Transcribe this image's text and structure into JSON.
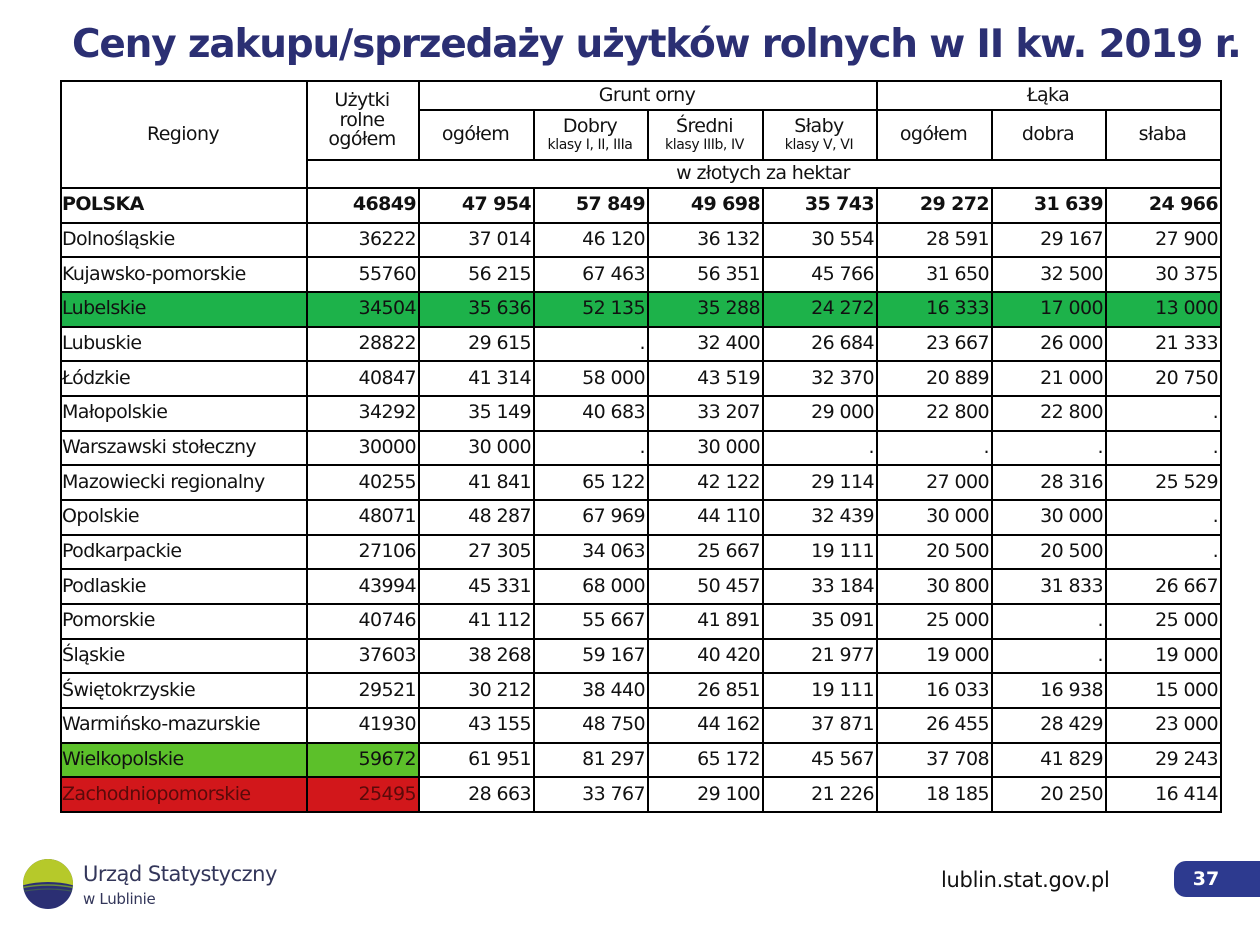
{
  "title": "Ceny zakupu/sprzedaży użytków rolnych w II kw. 2019 r.",
  "table": {
    "headers": {
      "regiony": "Regiony",
      "uzytki": [
        "Użytki",
        "rolne",
        "ogółem"
      ],
      "grunt_orny": "Grunt orny",
      "laka": "Łąka",
      "ogolem": "ogółem",
      "dobry": "Dobry",
      "dobry_sub": "klasy I, II, IIIa",
      "sredni": "Średni",
      "sredni_sub": "klasy IIIb, IV",
      "slaby": "Słaby",
      "slaby_sub": "klasy V, VI",
      "laka_ogolem": "ogółem",
      "laka_dobra": "dobra",
      "laka_slaba": "słaba",
      "unit": "w złotych za hektar"
    },
    "rows": [
      {
        "region": "POLSKA",
        "values": [
          "46849",
          "47 954",
          "57 849",
          "49 698",
          "35 743",
          "29 272",
          "31 639",
          "24 966"
        ]
      },
      {
        "region": "Dolnośląskie",
        "values": [
          "36222",
          "37 014",
          "46 120",
          "36 132",
          "30 554",
          "28 591",
          "29 167",
          "27 900"
        ]
      },
      {
        "region": "Kujawsko-pomorskie",
        "values": [
          "55760",
          "56 215",
          "67 463",
          "56 351",
          "45 766",
          "31 650",
          "32 500",
          "30 375"
        ]
      },
      {
        "region": "Lubelskie",
        "values": [
          "34504",
          "35 636",
          "52 135",
          "35 288",
          "24 272",
          "16 333",
          "17 000",
          "13 000"
        ]
      },
      {
        "region": "Lubuskie",
        "values": [
          "28822",
          "29 615",
          ".",
          "32 400",
          "26 684",
          "23 667",
          "26 000",
          "21 333"
        ]
      },
      {
        "region": "Łódzkie",
        "values": [
          "40847",
          "41 314",
          "58 000",
          "43 519",
          "32 370",
          "20 889",
          "21 000",
          "20 750"
        ]
      },
      {
        "region": "Małopolskie",
        "values": [
          "34292",
          "35 149",
          "40 683",
          "33 207",
          "29 000",
          "22 800",
          "22 800",
          "."
        ]
      },
      {
        "region": "Warszawski stołeczny",
        "values": [
          "30000",
          "30 000",
          ".",
          "30 000",
          ".",
          ".",
          ".",
          "."
        ]
      },
      {
        "region": "Mazowiecki regionalny",
        "values": [
          "40255",
          "41 841",
          "65 122",
          "42 122",
          "29 114",
          "27 000",
          "28 316",
          "25 529"
        ]
      },
      {
        "region": "Opolskie",
        "values": [
          "48071",
          "48 287",
          "67 969",
          "44 110",
          "32 439",
          "30 000",
          "30 000",
          "."
        ]
      },
      {
        "region": "Podkarpackie",
        "values": [
          "27106",
          "27 305",
          "34 063",
          "25 667",
          "19 111",
          "20 500",
          "20 500",
          "."
        ]
      },
      {
        "region": "Podlaskie",
        "values": [
          "43994",
          "45 331",
          "68 000",
          "50 457",
          "33 184",
          "30 800",
          "31 833",
          "26 667"
        ]
      },
      {
        "region": "Pomorskie",
        "values": [
          "40746",
          "41 112",
          "55 667",
          "41 891",
          "35 091",
          "25 000",
          ".",
          "25 000"
        ]
      },
      {
        "region": "Śląskie",
        "values": [
          "37603",
          "38 268",
          "59 167",
          "40 420",
          "21 977",
          "19 000",
          ".",
          "19 000"
        ]
      },
      {
        "region": "Świętokrzyskie",
        "values": [
          "29521",
          "30 212",
          "38 440",
          "26 851",
          "19 111",
          "16 033",
          "16 938",
          "15 000"
        ]
      },
      {
        "region": "Warmińsko-mazurskie",
        "values": [
          "41930",
          "43 155",
          "48 750",
          "44 162",
          "37 871",
          "26 455",
          "28 429",
          "23 000"
        ]
      },
      {
        "region": "Wielkopolskie",
        "values": [
          "59672",
          "61 951",
          "81 297",
          "65 172",
          "45 567",
          "37 708",
          "41 829",
          "29 243"
        ]
      },
      {
        "region": "Zachodniopomorskie",
        "values": [
          "25495",
          "28 663",
          "33 767",
          "29 100",
          "21 226",
          "18 185",
          "20 250",
          "16 414"
        ]
      }
    ],
    "highlights": {
      "Lubelskie": "#1db24a",
      "Wielkopolskie": "#5cc02a",
      "Zachodniopomorskie": "#d2171b"
    }
  },
  "footer": {
    "logo_line1": "Urząd Statystyczny",
    "logo_line2": "w Lublinie",
    "url": "lublin.stat.gov.pl",
    "page_number": "37"
  },
  "colors": {
    "title": "#2b2f73",
    "badge": "#2d3a8f",
    "logo_green": "#b6c92a",
    "logo_navy": "#2b2f73"
  }
}
